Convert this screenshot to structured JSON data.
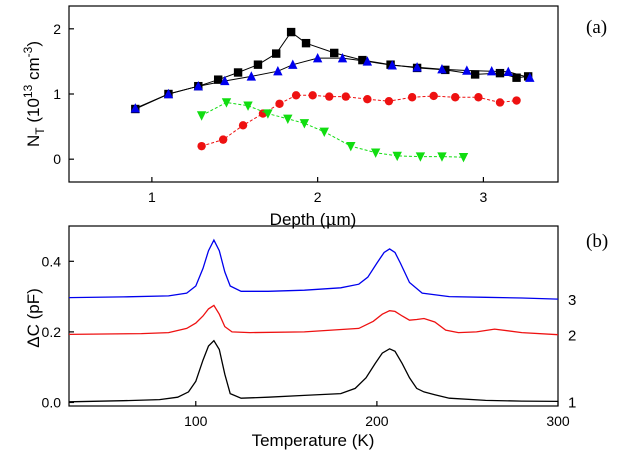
{
  "chart_data": [
    {
      "type": "scatter",
      "panel_label": "(a)",
      "ylabel_main": "N",
      "ylabel_sub": "T",
      "ylabel_rest": " (10",
      "ylabel_exp": "13",
      "ylabel_unit": " cm",
      "ylabel_unit_exp": "-3",
      "ylabel_close": ")",
      "xlabel_pre": "Depth (",
      "xlabel_mu": "μ",
      "xlabel_post": "m)",
      "xlim": [
        0.5,
        3.45
      ],
      "ylim": [
        -0.35,
        2.35
      ],
      "xticks": [
        {
          "v": 1,
          "label": "1"
        },
        {
          "v": 2,
          "label": "2"
        },
        {
          "v": 3,
          "label": "3"
        }
      ],
      "yticks": [
        {
          "v": 0,
          "label": "0"
        },
        {
          "v": 1,
          "label": "1"
        },
        {
          "v": 2,
          "label": "2"
        }
      ],
      "grid": false,
      "series": [
        {
          "marker": "square",
          "color": "#000000",
          "x": [
            0.9,
            1.1,
            1.28,
            1.4,
            1.52,
            1.64,
            1.75,
            1.84,
            1.93,
            2.1,
            2.27,
            2.44,
            2.6,
            2.77,
            2.95,
            3.1,
            3.2,
            3.27
          ],
          "y": [
            0.77,
            1.0,
            1.12,
            1.22,
            1.33,
            1.45,
            1.62,
            1.95,
            1.78,
            1.63,
            1.52,
            1.45,
            1.4,
            1.37,
            1.3,
            1.32,
            1.25,
            1.27
          ]
        },
        {
          "marker": "triangle-up",
          "color": "#0000ee",
          "x": [
            0.9,
            1.1,
            1.28,
            1.44,
            1.6,
            1.76,
            1.85,
            2.0,
            2.15,
            2.3,
            2.45,
            2.6,
            2.75,
            2.9,
            3.05,
            3.15,
            3.28
          ],
          "y": [
            0.78,
            1.0,
            1.12,
            1.2,
            1.27,
            1.35,
            1.45,
            1.55,
            1.55,
            1.5,
            1.44,
            1.41,
            1.38,
            1.36,
            1.35,
            1.34,
            1.25
          ]
        },
        {
          "marker": "circle",
          "color": "#ee1111",
          "x": [
            1.3,
            1.43,
            1.55,
            1.67,
            1.77,
            1.87,
            1.97,
            2.07,
            2.17,
            2.3,
            2.43,
            2.57,
            2.7,
            2.83,
            2.97,
            3.1,
            3.2
          ],
          "y": [
            0.2,
            0.3,
            0.52,
            0.7,
            0.85,
            0.98,
            0.98,
            0.96,
            0.96,
            0.92,
            0.89,
            0.95,
            0.97,
            0.95,
            0.95,
            0.87,
            0.9
          ],
          "connector": "dash"
        },
        {
          "marker": "triangle-down",
          "color": "#11dd11",
          "x": [
            1.3,
            1.45,
            1.58,
            1.7,
            1.82,
            1.92,
            2.04,
            2.2,
            2.35,
            2.48,
            2.62,
            2.75,
            2.88
          ],
          "y": [
            0.67,
            0.87,
            0.82,
            0.7,
            0.62,
            0.55,
            0.42,
            0.2,
            0.1,
            0.05,
            0.04,
            0.04,
            0.03
          ],
          "connector": "dash"
        }
      ]
    },
    {
      "type": "line",
      "panel_label": "(b)",
      "ylabel": "ΔC (pF)",
      "xlabel": "Temperature (K)",
      "xlim": [
        30,
        300
      ],
      "ylim": [
        -0.01,
        0.5
      ],
      "xticks": [
        {
          "v": 100,
          "label": "100"
        },
        {
          "v": 200,
          "label": "200"
        },
        {
          "v": 300,
          "label": "300"
        }
      ],
      "yticks": [
        {
          "v": 0.0,
          "label": "0.0"
        },
        {
          "v": 0.2,
          "label": "0.2"
        },
        {
          "v": 0.4,
          "label": "0.4"
        }
      ],
      "grid": false,
      "series": [
        {
          "name": "3",
          "color": "#0000ee",
          "x": [
            30,
            60,
            85,
            95,
            100,
            104,
            107,
            110,
            113,
            116,
            119,
            125,
            140,
            160,
            180,
            190,
            195,
            200,
            204,
            207,
            210,
            213,
            218,
            225,
            240,
            260,
            280,
            300
          ],
          "y": [
            0.297,
            0.299,
            0.302,
            0.31,
            0.33,
            0.38,
            0.43,
            0.46,
            0.43,
            0.37,
            0.33,
            0.315,
            0.315,
            0.318,
            0.325,
            0.335,
            0.355,
            0.395,
            0.425,
            0.435,
            0.425,
            0.395,
            0.34,
            0.31,
            0.3,
            0.298,
            0.296,
            0.293
          ]
        },
        {
          "name": "2",
          "color": "#ee1111",
          "x": [
            30,
            70,
            85,
            95,
            100,
            104,
            107,
            110,
            113,
            116,
            120,
            130,
            160,
            190,
            198,
            203,
            207,
            210,
            214,
            218,
            222,
            226,
            232,
            238,
            245,
            255,
            265,
            280,
            300
          ],
          "y": [
            0.193,
            0.195,
            0.198,
            0.21,
            0.225,
            0.245,
            0.265,
            0.275,
            0.25,
            0.215,
            0.2,
            0.198,
            0.2,
            0.21,
            0.23,
            0.25,
            0.26,
            0.258,
            0.245,
            0.233,
            0.235,
            0.238,
            0.228,
            0.205,
            0.198,
            0.2,
            0.208,
            0.198,
            0.192
          ]
        },
        {
          "name": "1",
          "color": "#000000",
          "x": [
            30,
            60,
            80,
            90,
            96,
            100,
            104,
            107,
            110,
            113,
            116,
            119,
            125,
            140,
            160,
            180,
            188,
            194,
            199,
            203,
            207,
            210,
            214,
            218,
            222,
            226,
            232,
            240,
            260,
            280,
            300
          ],
          "y": [
            0.002,
            0.005,
            0.008,
            0.015,
            0.03,
            0.06,
            0.12,
            0.16,
            0.175,
            0.15,
            0.08,
            0.025,
            0.012,
            0.015,
            0.02,
            0.025,
            0.04,
            0.07,
            0.11,
            0.14,
            0.152,
            0.145,
            0.11,
            0.07,
            0.04,
            0.03,
            0.022,
            0.012,
            0.006,
            0.004,
            0.003
          ]
        }
      ]
    }
  ]
}
